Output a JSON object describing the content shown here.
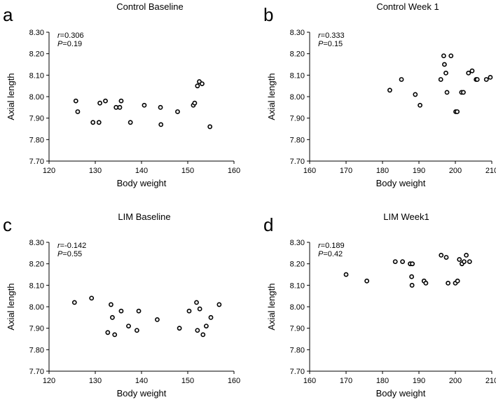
{
  "chart_data": [
    {
      "type": "scatter",
      "panel_letter": "a",
      "title": "Control Baseline",
      "xlabel": "Body weight",
      "ylabel": "Axial length",
      "xlim": [
        120,
        160
      ],
      "ylim": [
        7.7,
        8.3
      ],
      "xticks": [
        "120",
        "130",
        "140",
        "150",
        "160"
      ],
      "yticks": [
        "7.70",
        "7.80",
        "7.90",
        "8.00",
        "8.10",
        "8.20",
        "8.30"
      ],
      "stats": {
        "r_label": "r",
        "r_value": "=0.306",
        "p_label": "P",
        "p_value": "=0.19"
      },
      "x": [
        125.8,
        126.2,
        129.5,
        130.8,
        131.0,
        132.2,
        134.5,
        135.3,
        135.6,
        137.6,
        140.6,
        144.1,
        144.2,
        147.8,
        151.2,
        151.5,
        152.1,
        152.5,
        153.1,
        154.8
      ],
      "y": [
        7.98,
        7.93,
        7.88,
        7.88,
        7.97,
        7.98,
        7.95,
        7.95,
        7.98,
        7.88,
        7.96,
        7.95,
        7.87,
        7.93,
        7.96,
        7.97,
        8.05,
        8.07,
        8.06,
        7.86
      ]
    },
    {
      "type": "scatter",
      "panel_letter": "b",
      "title": "Control Week 1",
      "xlabel": "Body weight",
      "ylabel": "Axial length",
      "xlim": [
        160,
        210
      ],
      "ylim": [
        7.7,
        8.3
      ],
      "xticks": [
        "160",
        "170",
        "180",
        "190",
        "200",
        "210"
      ],
      "yticks": [
        "7.70",
        "7.80",
        "7.90",
        "8.00",
        "8.10",
        "8.20",
        "8.30"
      ],
      "stats": {
        "r_label": "r",
        "r_value": "=0.333",
        "p_label": "P",
        "p_value": "=0.15"
      },
      "x": [
        182.0,
        185.2,
        189.0,
        190.3,
        196.0,
        196.8,
        197.0,
        197.4,
        197.7,
        198.8,
        200.1,
        200.5,
        201.7,
        202.2,
        203.6,
        204.6,
        205.7,
        206.0,
        208.5,
        209.6
      ],
      "y": [
        8.03,
        8.08,
        8.01,
        7.96,
        8.08,
        8.19,
        8.15,
        8.11,
        8.02,
        8.19,
        7.93,
        7.93,
        8.02,
        8.02,
        8.11,
        8.12,
        8.08,
        8.08,
        8.08,
        8.09
      ]
    },
    {
      "type": "scatter",
      "panel_letter": "c",
      "title": "LIM Baseline",
      "xlabel": "Body weight",
      "ylabel": "Axial length",
      "xlim": [
        120,
        160
      ],
      "ylim": [
        7.7,
        8.3
      ],
      "xticks": [
        "120",
        "130",
        "140",
        "150",
        "160"
      ],
      "yticks": [
        "7.70",
        "7.80",
        "7.90",
        "8.00",
        "8.10",
        "8.20",
        "8.30"
      ],
      "stats": {
        "r_label": "r",
        "r_value": "=-0.142",
        "p_label": "P",
        "p_value": "=0.55"
      },
      "x": [
        125.5,
        129.2,
        132.7,
        133.4,
        133.7,
        134.2,
        135.6,
        137.2,
        139.0,
        139.4,
        143.4,
        148.2,
        150.3,
        151.9,
        152.1,
        152.6,
        153.3,
        154.0,
        155.0,
        156.8
      ],
      "y": [
        8.02,
        8.04,
        7.88,
        8.01,
        7.95,
        7.87,
        7.98,
        7.91,
        7.89,
        7.98,
        7.94,
        7.9,
        7.98,
        8.02,
        7.89,
        7.99,
        7.87,
        7.91,
        7.95,
        8.01
      ]
    },
    {
      "type": "scatter",
      "panel_letter": "d",
      "title": "LIM Week1",
      "xlabel": "Body weight",
      "ylabel": "Axial length",
      "xlim": [
        160,
        210
      ],
      "ylim": [
        7.7,
        8.3
      ],
      "xticks": [
        "160",
        "170",
        "180",
        "190",
        "200",
        "210"
      ],
      "yticks": [
        "7.70",
        "7.80",
        "7.90",
        "8.00",
        "8.10",
        "8.20",
        "8.30"
      ],
      "stats": {
        "r_label": "r",
        "r_value": "=0.189",
        "p_label": "P",
        "p_value": "=0.42"
      },
      "x": [
        170.0,
        175.7,
        183.5,
        185.5,
        187.6,
        188.0,
        188.1,
        188.2,
        191.4,
        191.9,
        196.1,
        197.5,
        198.0,
        200.0,
        200.6,
        201.1,
        201.8,
        202.4,
        203.0,
        203.9
      ],
      "y": [
        8.15,
        8.12,
        8.21,
        8.21,
        8.2,
        8.14,
        8.1,
        8.2,
        8.12,
        8.11,
        8.24,
        8.23,
        8.11,
        8.11,
        8.12,
        8.22,
        8.2,
        8.21,
        8.24,
        8.21
      ]
    }
  ]
}
